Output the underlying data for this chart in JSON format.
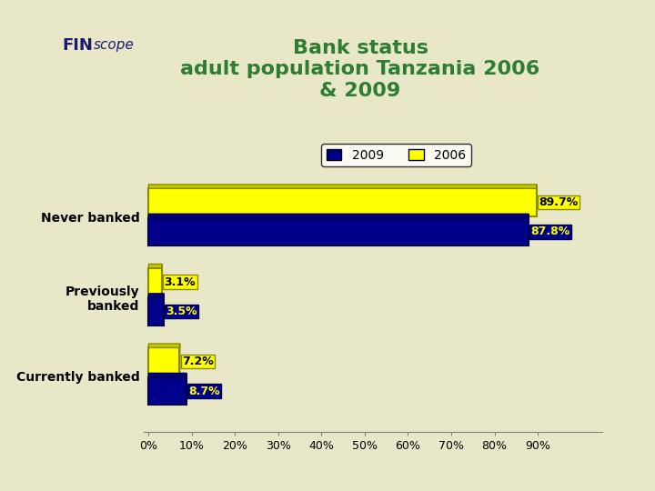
{
  "title": "Bank status\nadult population Tanzania 2006\n& 2009",
  "title_color": "#2e7d32",
  "background_color": "#e8e8c8",
  "categories": [
    "Never banked",
    "Previously\nbanked",
    "Currently banked"
  ],
  "values_2006": [
    89.7,
    3.1,
    7.2
  ],
  "values_2009": [
    87.8,
    3.5,
    8.7
  ],
  "labels_2006": [
    "89.7%",
    "3.1%",
    "7.2%"
  ],
  "labels_2009": [
    "87.8%",
    "3.5%",
    "8.7%"
  ],
  "color_2006": "#ffff00",
  "color_2009": "#00008b",
  "color_2006_edge": "#8b8b00",
  "color_2009_edge": "#000050",
  "label_color_2006": "#000000",
  "label_color_2009": "#ffff00",
  "xlim": [
    0,
    100
  ],
  "xticks": [
    0,
    10,
    20,
    30,
    40,
    50,
    60,
    70,
    80,
    90
  ],
  "xtick_labels": [
    "0%",
    "10%",
    "20%",
    "30%",
    "40%",
    "50%",
    "60%",
    "70%",
    "80%",
    "90%"
  ],
  "bar_height": 0.35,
  "legend_2009_label": "2009",
  "legend_2006_label": "2006",
  "logo_present": true
}
